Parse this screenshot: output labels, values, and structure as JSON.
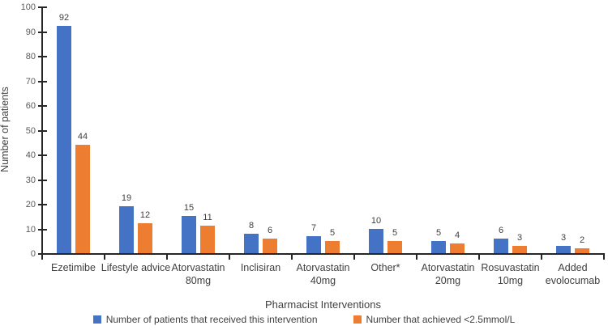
{
  "chart_data": {
    "type": "bar",
    "title": "",
    "xlabel": "Pharmacist Interventions",
    "ylabel": "Number of patients",
    "ylim": [
      0,
      100
    ],
    "yticks": [
      0,
      10,
      20,
      30,
      40,
      50,
      60,
      70,
      80,
      90,
      100
    ],
    "grid": false,
    "legend_position": "bottom",
    "categories": [
      "Ezetimibe",
      "Lifestyle advice",
      "Atorvastatin 80mg",
      "Inclisiran",
      "Atorvastatin 40mg",
      "Other*",
      "Atorvastatin 20mg",
      "Rosuvastatin 10mg",
      "Added evolocumab"
    ],
    "category_lines": [
      [
        "Ezetimibe"
      ],
      [
        "Lifestyle advice"
      ],
      [
        "Atorvastatin",
        "80mg"
      ],
      [
        "Inclisiran"
      ],
      [
        "Atorvastatin",
        "40mg"
      ],
      [
        "Other*"
      ],
      [
        "Atorvastatin",
        "20mg"
      ],
      [
        "Rosuvastatin",
        "10mg"
      ],
      [
        "Added",
        "evolocumab"
      ]
    ],
    "series": [
      {
        "name": "Number of patients that received this intervention",
        "color": "#4472C4",
        "values": [
          92,
          19,
          15,
          8,
          7,
          10,
          5,
          6,
          3
        ]
      },
      {
        "name": "Number that achieved <2.5mmol/L",
        "color": "#ED7D31",
        "values": [
          44,
          12,
          11,
          6,
          5,
          5,
          4,
          3,
          2
        ]
      }
    ],
    "colors": {
      "axis": "#262626",
      "tick_label": "#595959",
      "data_label": "#404040",
      "series_blue": "#4472C4",
      "series_orange": "#ED7D31"
    }
  }
}
